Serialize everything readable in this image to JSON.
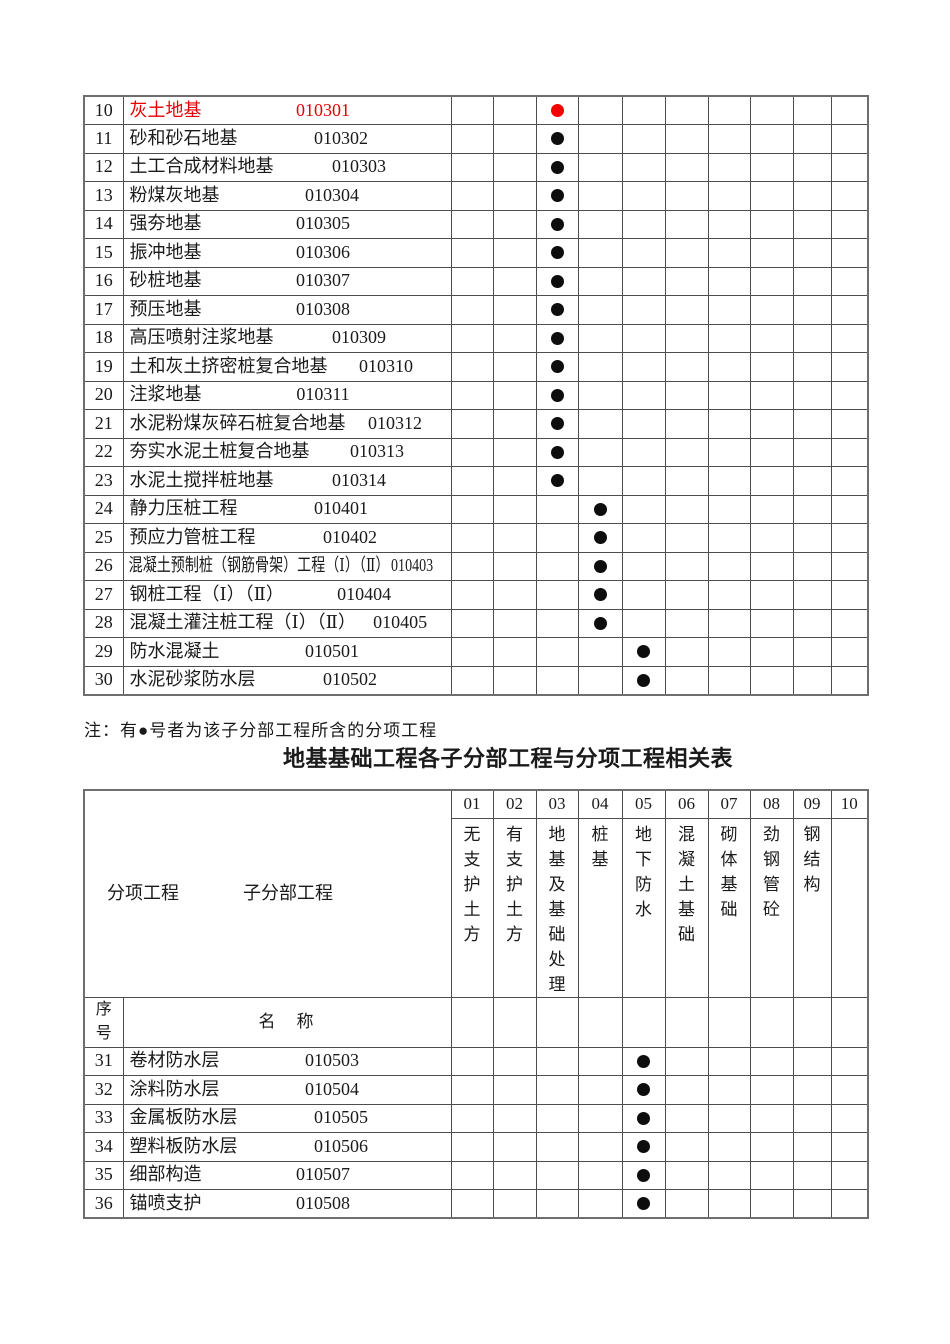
{
  "colors": {
    "red_text": "#e60000",
    "red_dot": "#f40000"
  },
  "note": "注：有●号者为该子分部工程所含的分项工程",
  "title": "地基基础工程各子分部工程与分项工程相关表",
  "table1": {
    "rows": [
      {
        "no": "10",
        "name": "灰土地基",
        "code": "010301",
        "dot_col": 3,
        "red": true
      },
      {
        "no": "11",
        "name": "砂和砂石地基",
        "code": "010302",
        "dot_col": 3
      },
      {
        "no": "12",
        "name": "土工合成材料地基",
        "code": "010303",
        "dot_col": 3
      },
      {
        "no": "13",
        "name": "粉煤灰地基",
        "code": "010304",
        "dot_col": 3
      },
      {
        "no": "14",
        "name": "强夯地基",
        "code": "010305",
        "dot_col": 3
      },
      {
        "no": "15",
        "name": "振冲地基",
        "code": "010306",
        "dot_col": 3
      },
      {
        "no": "16",
        "name": "砂桩地基",
        "code": "010307",
        "dot_col": 3
      },
      {
        "no": "17",
        "name": "预压地基",
        "code": "010308",
        "dot_col": 3
      },
      {
        "no": "18",
        "name": "高压喷射注浆地基",
        "code": "010309",
        "dot_col": 3
      },
      {
        "no": "19",
        "name": "土和灰土挤密桩复合地基",
        "code": "010310",
        "dot_col": 3
      },
      {
        "no": "20",
        "name": "注浆地基",
        "code": "010311",
        "dot_col": 3
      },
      {
        "no": "21",
        "name": "水泥粉煤灰碎石桩复合地基",
        "code": "010312",
        "dot_col": 3
      },
      {
        "no": "22",
        "name": "夯实水泥土桩复合地基",
        "code": "010313",
        "dot_col": 3
      },
      {
        "no": "23",
        "name": "水泥土搅拌桩地基",
        "code": "010314",
        "dot_col": 3
      },
      {
        "no": "24",
        "name": "静力压桩工程",
        "code": "010401",
        "dot_col": 4
      },
      {
        "no": "25",
        "name": "预应力管桩工程",
        "code": "010402",
        "dot_col": 4
      },
      {
        "no": "26",
        "name": "混凝土预制桩（钢筋骨架）工程（Ⅰ）（Ⅱ）",
        "code": "010403",
        "dot_col": 4
      },
      {
        "no": "27",
        "name": "钢桩工程（Ⅰ）（Ⅱ）",
        "code": "010404",
        "dot_col": 4
      },
      {
        "no": "28",
        "name": "混凝土灌注桩工程（Ⅰ）（Ⅱ）",
        "code": "010405",
        "dot_col": 4
      },
      {
        "no": "29",
        "name": "防水混凝土",
        "code": "010501",
        "dot_col": 5
      },
      {
        "no": "30",
        "name": "水泥砂浆防水层",
        "code": "010502",
        "dot_col": 5
      }
    ]
  },
  "table2": {
    "corner_left": "分项工程",
    "corner_right": "子分部工程",
    "col_numbers": [
      "01",
      "02",
      "03",
      "04",
      "05",
      "06",
      "07",
      "08",
      "09",
      "10"
    ],
    "col_labels": [
      "无支护土方",
      "有支护土方",
      "地基及基础处理",
      "桩基",
      "地下防水",
      "混凝土基础",
      "砌体基础",
      "劲钢管砼",
      "钢结构",
      ""
    ],
    "seq_header": "序号",
    "name_header": "名　称",
    "rows": [
      {
        "no": "31",
        "name": "卷材防水层",
        "code": "010503",
        "dot_col": 5
      },
      {
        "no": "32",
        "name": "涂料防水层",
        "code": "010504",
        "dot_col": 5
      },
      {
        "no": "33",
        "name": "金属板防水层",
        "code": "010505",
        "dot_col": 5
      },
      {
        "no": "34",
        "name": "塑料板防水层",
        "code": "010506",
        "dot_col": 5
      },
      {
        "no": "35",
        "name": "细部构造",
        "code": "010507",
        "dot_col": 5
      },
      {
        "no": "36",
        "name": "锚喷支护",
        "code": "010508",
        "dot_col": 5
      }
    ]
  }
}
